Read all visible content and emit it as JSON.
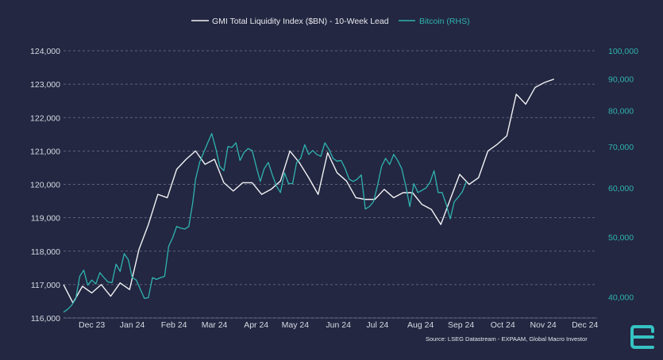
{
  "colors": {
    "background": "#232741",
    "grid": "#8a8ea6",
    "liquidity_line": "#f2f2f5",
    "bitcoin_line": "#2fb3b0",
    "left_axis_text": "#d8dae3",
    "right_axis_text": "#2fb3b0",
    "logo": "#36c2c3"
  },
  "icons": {
    "logo": "global-macro-investor-logo-icon"
  },
  "chart_data": {
    "type": "line",
    "title": "",
    "legend_placement": "top-center",
    "grid": "horizontal dashed",
    "source": "Source: LSEG Datastream - EXPAAM, Global Macro Investor",
    "x_tick_labels": [
      "Dec 23",
      "Jan 24",
      "Feb 24",
      "Mar 24",
      "Apr 24",
      "May 24",
      "Jun 24",
      "Jul 24",
      "Aug 24",
      "Sep 24",
      "Oct 24",
      "Nov 24",
      "Dec 24"
    ],
    "y_left": {
      "range": [
        116000,
        124000
      ],
      "ticks": [
        116000,
        117000,
        118000,
        119000,
        120000,
        121000,
        122000,
        123000,
        124000
      ],
      "tick_labels": [
        "116,000",
        "117,000",
        "118,000",
        "119,000",
        "120,000",
        "121,000",
        "122,000",
        "123,000",
        "124,000"
      ]
    },
    "y_right": {
      "scale": "log",
      "range": [
        37000,
        100000
      ],
      "ticks": [
        40000,
        50000,
        60000,
        70000,
        80000,
        90000,
        100000
      ],
      "tick_labels": [
        "40,000",
        "50,000",
        "60,000",
        "70,000",
        "80,000",
        "90,000",
        "100,000"
      ]
    },
    "series": [
      {
        "name": "GMI Total Liquidity Index ($BN) - 10-Week Lead",
        "axis": "left",
        "x": [
          "2023-11-24",
          "2023-12-01",
          "2023-12-08",
          "2023-12-15",
          "2023-12-22",
          "2023-12-29",
          "2024-01-05",
          "2024-01-12",
          "2024-01-19",
          "2024-01-26",
          "2024-02-02",
          "2024-02-09",
          "2024-02-16",
          "2024-02-23",
          "2024-03-01",
          "2024-03-08",
          "2024-03-15",
          "2024-03-22",
          "2024-03-29",
          "2024-04-05",
          "2024-04-12",
          "2024-04-19",
          "2024-04-26",
          "2024-05-03",
          "2024-05-10",
          "2024-05-17",
          "2024-05-24",
          "2024-05-31",
          "2024-06-07",
          "2024-06-14",
          "2024-06-21",
          "2024-06-28",
          "2024-07-05",
          "2024-07-12",
          "2024-07-19",
          "2024-07-26",
          "2024-08-02",
          "2024-08-09",
          "2024-08-16",
          "2024-08-23",
          "2024-08-30",
          "2024-09-06",
          "2024-09-13",
          "2024-09-20",
          "2024-09-27",
          "2024-10-04",
          "2024-10-11",
          "2024-10-18",
          "2024-10-25",
          "2024-11-01",
          "2024-11-08",
          "2024-11-15",
          "2024-11-22"
        ],
        "y": [
          117000,
          116450,
          116950,
          116750,
          117000,
          116650,
          117050,
          116850,
          118050,
          118800,
          119700,
          119600,
          120450,
          120750,
          121000,
          120600,
          120750,
          120050,
          119800,
          120050,
          120050,
          119700,
          119850,
          120100,
          121000,
          120650,
          120200,
          119700,
          120950,
          120350,
          120100,
          119600,
          119550,
          119550,
          119850,
          119600,
          119750,
          119750,
          119400,
          119250,
          118800,
          119550,
          120300,
          120000,
          120200,
          121000,
          121200,
          121450,
          122700,
          122400,
          122900,
          123050,
          123150
        ]
      },
      {
        "name": "Bitcoin (RHS)",
        "axis": "right",
        "x": [
          "2023-11-24",
          "2023-11-27",
          "2023-11-30",
          "2023-12-03",
          "2023-12-06",
          "2023-12-09",
          "2023-12-12",
          "2023-12-15",
          "2023-12-18",
          "2023-12-21",
          "2023-12-24",
          "2023-12-27",
          "2023-12-30",
          "2024-01-02",
          "2024-01-05",
          "2024-01-08",
          "2024-01-11",
          "2024-01-14",
          "2024-01-17",
          "2024-01-20",
          "2024-01-23",
          "2024-01-26",
          "2024-01-29",
          "2024-02-01",
          "2024-02-04",
          "2024-02-07",
          "2024-02-10",
          "2024-02-13",
          "2024-02-16",
          "2024-02-19",
          "2024-02-22",
          "2024-02-25",
          "2024-02-28",
          "2024-03-01",
          "2024-03-04",
          "2024-03-07",
          "2024-03-10",
          "2024-03-13",
          "2024-03-16",
          "2024-03-19",
          "2024-03-22",
          "2024-03-25",
          "2024-03-28",
          "2024-03-31",
          "2024-04-03",
          "2024-04-06",
          "2024-04-09",
          "2024-04-12",
          "2024-04-15",
          "2024-04-18",
          "2024-04-21",
          "2024-04-24",
          "2024-04-27",
          "2024-04-30",
          "2024-05-03",
          "2024-05-06",
          "2024-05-09",
          "2024-05-12",
          "2024-05-15",
          "2024-05-18",
          "2024-05-21",
          "2024-05-24",
          "2024-05-27",
          "2024-05-30",
          "2024-06-02",
          "2024-06-05",
          "2024-06-08",
          "2024-06-11",
          "2024-06-14",
          "2024-06-17",
          "2024-06-20",
          "2024-06-23",
          "2024-06-26",
          "2024-06-29",
          "2024-07-02",
          "2024-07-05",
          "2024-07-08",
          "2024-07-11",
          "2024-07-14",
          "2024-07-17",
          "2024-07-20",
          "2024-07-23",
          "2024-07-26",
          "2024-07-29",
          "2024-08-01",
          "2024-08-04",
          "2024-08-07",
          "2024-08-10",
          "2024-08-13",
          "2024-08-16",
          "2024-08-19",
          "2024-08-22",
          "2024-08-25",
          "2024-08-28",
          "2024-08-31",
          "2024-09-03",
          "2024-09-06",
          "2024-09-09",
          "2024-09-12",
          "2024-09-15",
          "2024-09-18"
        ],
        "y": [
          37800,
          38200,
          38800,
          39700,
          43200,
          44200,
          41800,
          42600,
          42000,
          43800,
          43000,
          42300,
          42200,
          45200,
          44000,
          47000,
          46000,
          43000,
          42600,
          41200,
          39800,
          39900,
          43000,
          42700,
          43000,
          43200,
          48300,
          49900,
          52000,
          51700,
          51500,
          52000,
          57000,
          62000,
          66000,
          68500,
          71000,
          73500,
          69500,
          65000,
          64000,
          70000,
          69800,
          71000,
          66500,
          68500,
          69500,
          69000,
          65000,
          61500,
          64500,
          66000,
          63000,
          60500,
          59000,
          63500,
          61000,
          61000,
          66000,
          67000,
          70500,
          68000,
          69000,
          68000,
          67500,
          71000,
          69300,
          67000,
          66300,
          66500,
          64500,
          62000,
          61500,
          62000,
          63000,
          55500,
          56000,
          57000,
          60500,
          65000,
          67000,
          65500,
          68000,
          66500,
          64500,
          60500,
          56000,
          61000,
          59000,
          59500,
          60000,
          61300,
          64000,
          59000,
          59000,
          56500,
          53500,
          57000,
          58000,
          59200,
          61500
        ]
      }
    ]
  }
}
